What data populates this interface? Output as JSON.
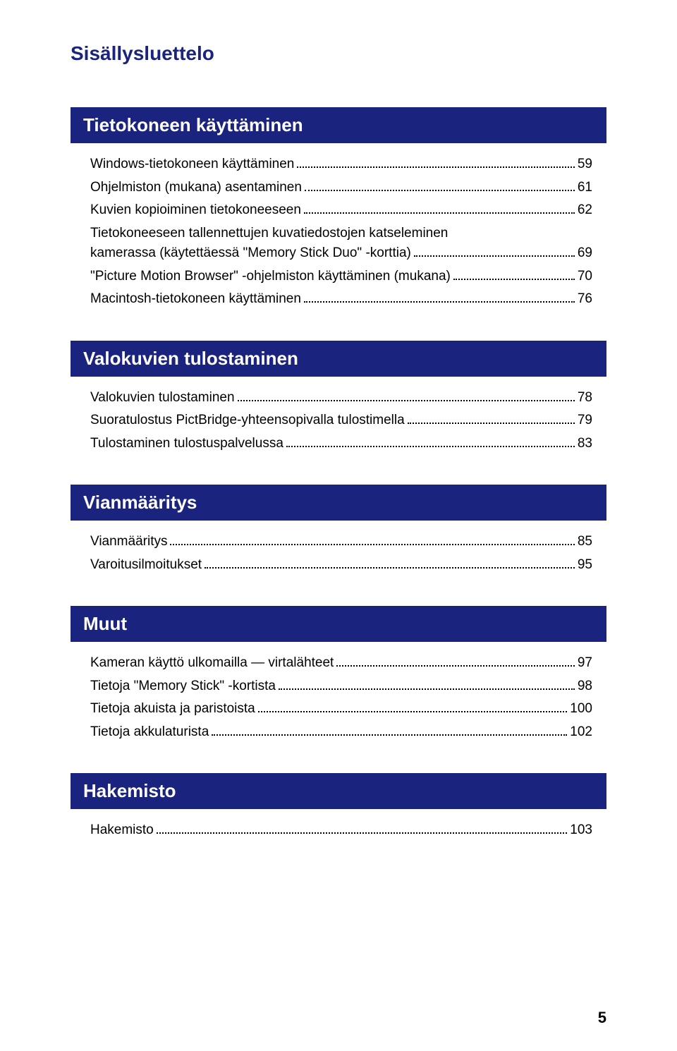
{
  "title": "Sisällysluettelo",
  "colors": {
    "header_bg": "#1a237e",
    "header_text": "#ffffff",
    "title_color": "#1a237e",
    "body_text": "#000000",
    "page_bg": "#ffffff"
  },
  "typography": {
    "title_fontsize": 28,
    "section_header_fontsize": 26,
    "entry_fontsize": 19,
    "page_number_fontsize": 22
  },
  "page_number": "5",
  "sections": [
    {
      "header": "Tietokoneen käyttäminen",
      "entries": [
        {
          "label": "Windows-tietokoneen käyttäminen",
          "page": "59"
        },
        {
          "label": "Ohjelmiston (mukana) asentaminen",
          "page": "61"
        },
        {
          "label": "Kuvien kopioiminen tietokoneeseen",
          "page": "62"
        },
        {
          "label_pre": "Tietokoneeseen tallennettujen kuvatiedostojen katseleminen",
          "label_last": "kamerassa (käytettäessä \"Memory Stick Duo\" -korttia)",
          "page": "69",
          "wrap": true
        },
        {
          "label": "\"Picture Motion Browser\" -ohjelmiston käyttäminen (mukana)",
          "page": "70"
        },
        {
          "label": "Macintosh-tietokoneen käyttäminen",
          "page": "76"
        }
      ]
    },
    {
      "header": "Valokuvien tulostaminen",
      "entries": [
        {
          "label": "Valokuvien tulostaminen",
          "page": "78"
        },
        {
          "label": "Suoratulostus PictBridge-yhteensopivalla tulostimella",
          "page": "79"
        },
        {
          "label": "Tulostaminen tulostuspalvelussa",
          "page": "83"
        }
      ]
    },
    {
      "header": "Vianmääritys",
      "entries": [
        {
          "label": "Vianmääritys",
          "page": "85"
        },
        {
          "label": "Varoitusilmoitukset",
          "page": "95"
        }
      ]
    },
    {
      "header": "Muut",
      "entries": [
        {
          "label": "Kameran käyttö ulkomailla — virtalähteet",
          "page": "97"
        },
        {
          "label": "Tietoja \"Memory Stick\" -kortista",
          "page": "98"
        },
        {
          "label": "Tietoja akuista ja paristoista",
          "page": "100"
        },
        {
          "label": "Tietoja akkulaturista",
          "page": "102"
        }
      ]
    },
    {
      "header": "Hakemisto",
      "entries": [
        {
          "label": "Hakemisto",
          "page": "103"
        }
      ]
    }
  ]
}
